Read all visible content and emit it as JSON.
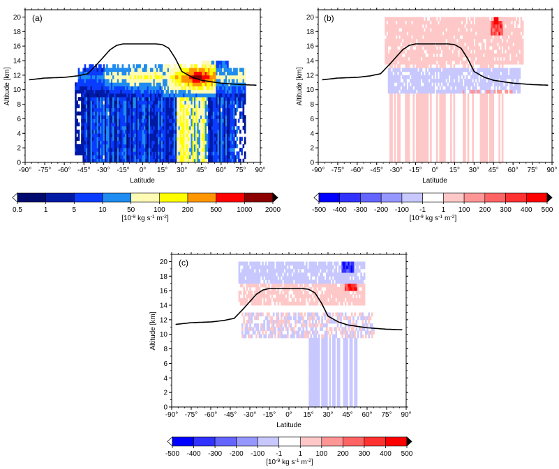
{
  "chart_data": [
    {
      "panel": "a",
      "type": "heatmap",
      "panel_label": "(a)",
      "xlabel": "Latitude",
      "ylabel": "Altitude [km]",
      "xlim": [
        -90,
        90
      ],
      "ylim": [
        0,
        21
      ],
      "x_ticks": [
        "-90°",
        "-75°",
        "-60°",
        "-45°",
        "-30°",
        "-15°",
        "0°",
        "15°",
        "30°",
        "45°",
        "60°",
        "75°",
        "90°"
      ],
      "y_ticks": [
        "0",
        "2",
        "4",
        "6",
        "8",
        "10",
        "12",
        "14",
        "16",
        "18",
        "20"
      ],
      "colorbar": {
        "labels": [
          "0.5",
          "1",
          "5",
          "10",
          "50",
          "100",
          "200",
          "500",
          "1000",
          "2000"
        ],
        "colors": [
          "#000a6e",
          "#001aa5",
          "#0a3cff",
          "#1e8cf0",
          "#fffab4",
          "#ffff00",
          "#ff9600",
          "#ff0000",
          "#8c0000"
        ],
        "unit": "[10<sup>-9</sup> kg s<sup>-1</sup> m<sup>-2</sup>]"
      },
      "tropopause": {
        "lat": [
          -90,
          -75,
          -60,
          -50,
          -42,
          -35,
          -25,
          -20,
          -15,
          -10,
          0,
          10,
          15,
          20,
          25,
          30,
          38,
          45,
          52,
          60,
          75,
          90
        ],
        "alt": [
          11.3,
          11.6,
          11.7,
          11.9,
          12.2,
          13.5,
          15.5,
          16.1,
          16.3,
          16.3,
          16.3,
          16.3,
          16.2,
          15.7,
          14.3,
          12.5,
          11.7,
          11.3,
          11.1,
          10.9,
          10.7,
          10.6
        ]
      }
    },
    {
      "panel": "b",
      "type": "heatmap",
      "panel_label": "(b)",
      "xlabel": "Latitude",
      "ylabel": "Altitude [km]",
      "xlim": [
        -90,
        90
      ],
      "ylim": [
        0,
        21
      ],
      "x_ticks": [
        "-90°",
        "-75°",
        "-60°",
        "-45°",
        "-30°",
        "-15°",
        "0°",
        "15°",
        "30°",
        "45°",
        "60°",
        "75°",
        "90°"
      ],
      "y_ticks": [
        "0",
        "2",
        "4",
        "6",
        "8",
        "10",
        "12",
        "14",
        "16",
        "18",
        "20"
      ],
      "colorbar": {
        "labels": [
          "-500",
          "-400",
          "-300",
          "-200",
          "-100",
          "-1",
          "1",
          "100",
          "200",
          "300",
          "400",
          "500"
        ],
        "colors": [
          "#0000ff",
          "#3232ff",
          "#6464ff",
          "#9696ff",
          "#c8c8ff",
          "#ffffff",
          "#ffc8c8",
          "#ff9696",
          "#ff6464",
          "#ff3232",
          "#ff0000"
        ],
        "unit": "[10<sup>-9</sup> kg s<sup>-1</sup> m<sup>-2</sup>]"
      }
    },
    {
      "panel": "c",
      "type": "heatmap",
      "panel_label": "(c)",
      "xlabel": "Latitude",
      "ylabel": "Altitude [km]",
      "xlim": [
        -90,
        90
      ],
      "ylim": [
        0,
        21
      ],
      "x_ticks": [
        "-90°",
        "-75°",
        "-60°",
        "-45°",
        "-30°",
        "-15°",
        "0°",
        "15°",
        "30°",
        "45°",
        "60°",
        "75°",
        "90°"
      ],
      "y_ticks": [
        "0",
        "2",
        "4",
        "6",
        "8",
        "10",
        "12",
        "14",
        "16",
        "18",
        "20"
      ],
      "colorbar": {
        "labels": [
          "-500",
          "-400",
          "-300",
          "-200",
          "-100",
          "-1",
          "1",
          "100",
          "200",
          "300",
          "400",
          "500"
        ],
        "colors": [
          "#0000ff",
          "#3232ff",
          "#6464ff",
          "#9696ff",
          "#c8c8ff",
          "#ffffff",
          "#ffc8c8",
          "#ff9696",
          "#ff6464",
          "#ff3232",
          "#ff0000"
        ],
        "unit": "[10<sup>-9</sup> kg s<sup>-1</sup> m<sup>-2</sup>]"
      }
    }
  ]
}
